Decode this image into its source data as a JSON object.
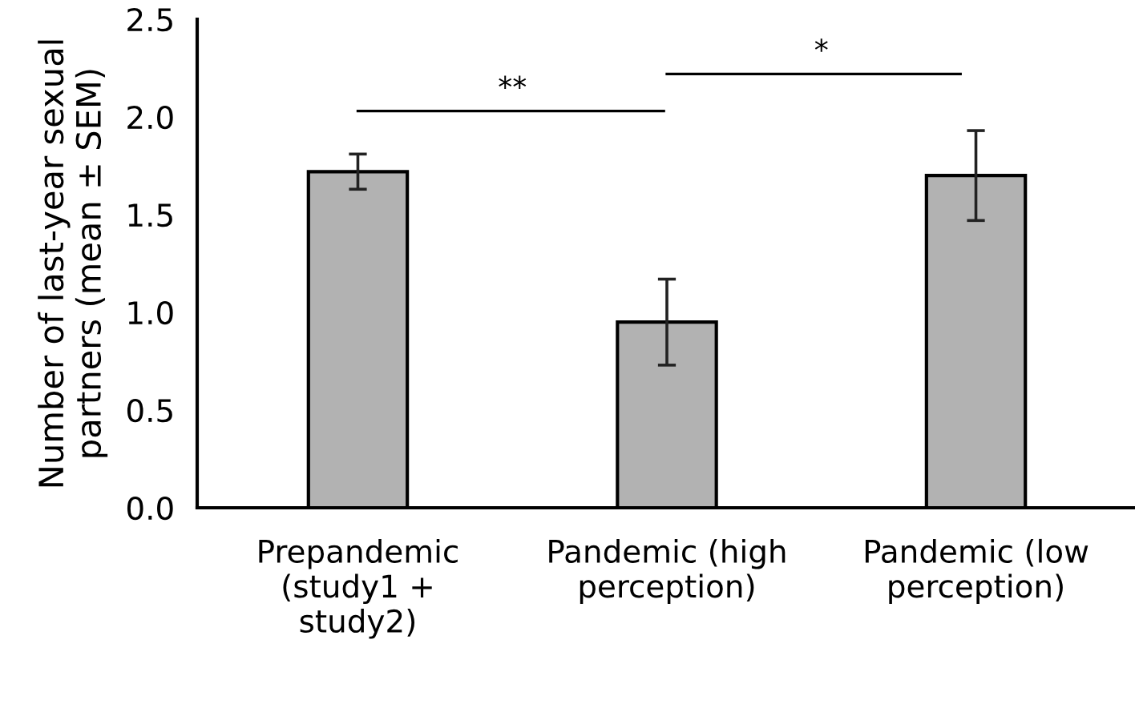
{
  "chart_data": {
    "type": "bar",
    "ylabel": "Number of last-year sexual partners (mean ± SEM)",
    "categories": [
      "Prepandemic\n(study1 +\nstudy2)",
      "Pandemic (high\nperception)",
      "Pandemic (low\nperception)"
    ],
    "values": [
      1.72,
      0.95,
      1.7
    ],
    "errors": [
      0.09,
      0.22,
      0.23
    ],
    "color": "#b2b2b2",
    "ylim": [
      0,
      2.5
    ],
    "yticks": [
      {
        "value": 0,
        "label": "0.0"
      },
      {
        "value": 0.5,
        "label": "0.5"
      },
      {
        "value": 1,
        "label": "1.0"
      },
      {
        "value": 1.5,
        "label": "1.5"
      },
      {
        "value": 2,
        "label": "2.0"
      },
      {
        "value": 2.5,
        "label": "2.5"
      }
    ],
    "grid": false,
    "annotations": [
      "**",
      "*"
    ]
  }
}
